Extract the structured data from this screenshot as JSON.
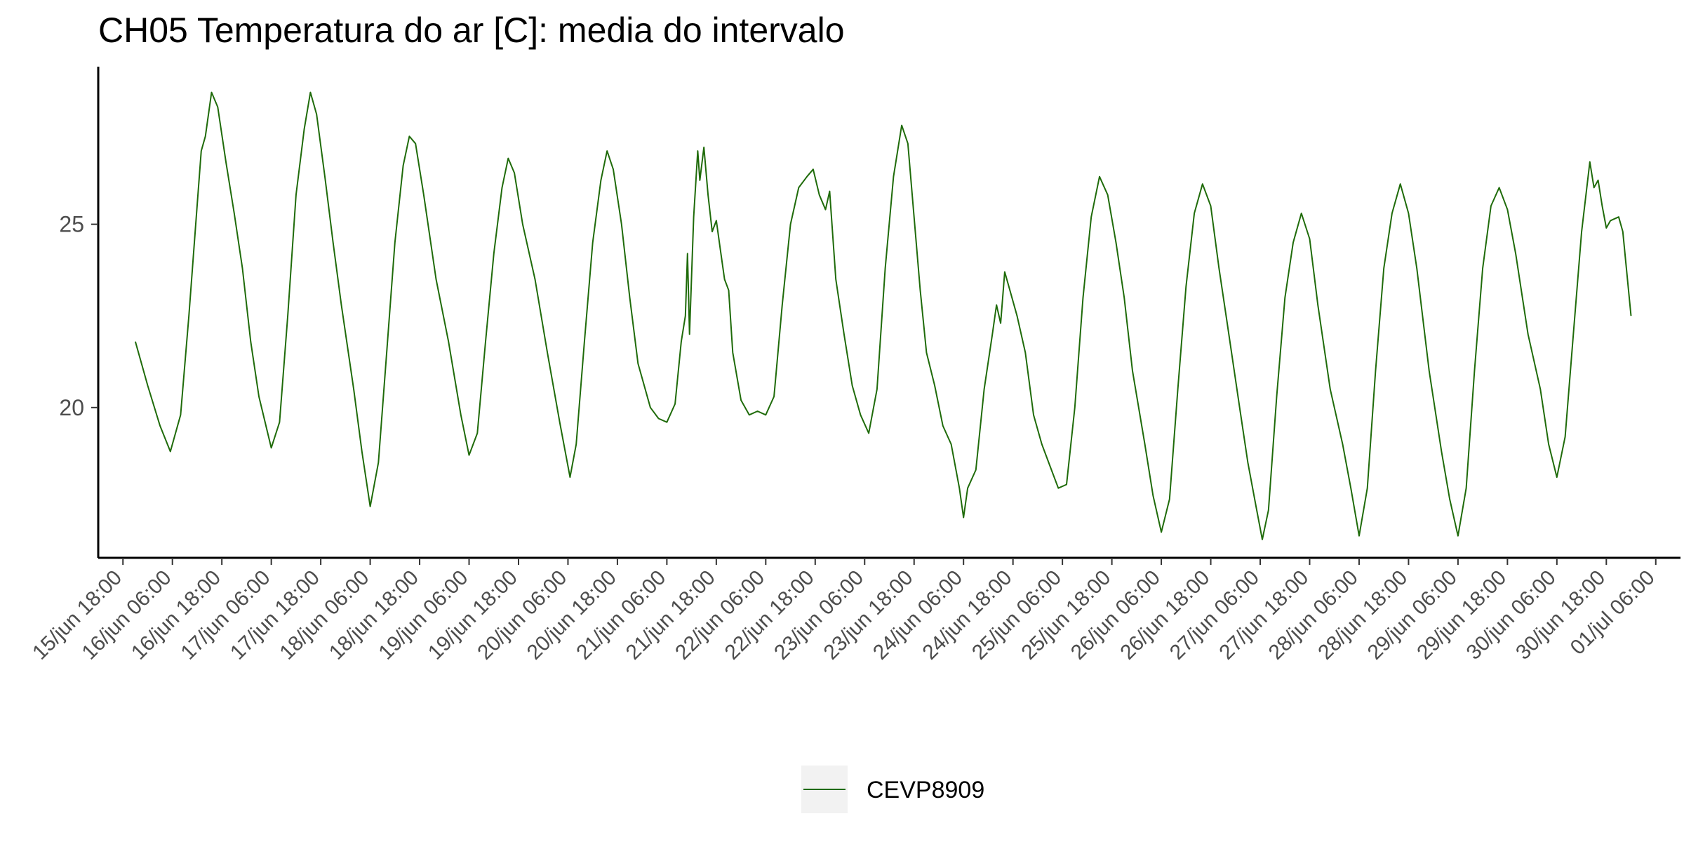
{
  "chart_data": {
    "type": "line",
    "title": "CH05 Temperatura do ar [C]: media do intervalo",
    "xlabel": "",
    "ylabel": "",
    "x_ticks": [
      "15/jun 18:00",
      "16/jun 06:00",
      "16/jun 18:00",
      "17/jun 06:00",
      "17/jun 18:00",
      "18/jun 06:00",
      "18/jun 18:00",
      "19/jun 06:00",
      "19/jun 18:00",
      "20/jun 06:00",
      "20/jun 18:00",
      "21/jun 06:00",
      "21/jun 18:00",
      "22/jun 06:00",
      "22/jun 18:00",
      "23/jun 06:00",
      "23/jun 18:00",
      "24/jun 06:00",
      "24/jun 18:00",
      "25/jun 06:00",
      "25/jun 18:00",
      "26/jun 06:00",
      "26/jun 18:00",
      "27/jun 06:00",
      "27/jun 18:00",
      "28/jun 06:00",
      "28/jun 18:00",
      "29/jun 06:00",
      "29/jun 18:00",
      "30/jun 06:00",
      "30/jun 18:00",
      "01/jul 06:00"
    ],
    "xlim": [
      "15/jun 12:00",
      "01/jul 12:00"
    ],
    "y_ticks": [
      20,
      25
    ],
    "ylim": [
      15.9,
      29.3
    ],
    "grid": false,
    "legend_position": "bottom",
    "series": [
      {
        "name": "CEVP8909",
        "color": "#1f6b0a",
        "points": [
          [
            "15/jun 21:00",
            21.8
          ],
          [
            "16/jun 00:00",
            20.6
          ],
          [
            "16/jun 03:00",
            19.5
          ],
          [
            "16/jun 05:30",
            18.8
          ],
          [
            "16/jun 08:00",
            19.8
          ],
          [
            "16/jun 10:00",
            22.5
          ],
          [
            "16/jun 12:00",
            25.5
          ],
          [
            "16/jun 13:00",
            27.0
          ],
          [
            "16/jun 14:00",
            27.4
          ],
          [
            "16/jun 15:30",
            28.6
          ],
          [
            "16/jun 17:00",
            28.2
          ],
          [
            "16/jun 19:00",
            26.7
          ],
          [
            "16/jun 21:00",
            25.3
          ],
          [
            "16/jun 23:00",
            23.8
          ],
          [
            "17/jun 01:00",
            21.8
          ],
          [
            "17/jun 03:00",
            20.3
          ],
          [
            "17/jun 06:00",
            18.9
          ],
          [
            "17/jun 08:00",
            19.6
          ],
          [
            "17/jun 10:00",
            22.5
          ],
          [
            "17/jun 12:00",
            25.8
          ],
          [
            "17/jun 14:00",
            27.6
          ],
          [
            "17/jun 15:30",
            28.6
          ],
          [
            "17/jun 17:00",
            28.0
          ],
          [
            "17/jun 19:00",
            26.3
          ],
          [
            "17/jun 21:00",
            24.5
          ],
          [
            "17/jun 23:00",
            22.8
          ],
          [
            "18/jun 02:00",
            20.5
          ],
          [
            "18/jun 04:00",
            18.8
          ],
          [
            "18/jun 06:00",
            17.3
          ],
          [
            "18/jun 08:00",
            18.5
          ],
          [
            "18/jun 10:00",
            21.5
          ],
          [
            "18/jun 12:00",
            24.5
          ],
          [
            "18/jun 14:00",
            26.6
          ],
          [
            "18/jun 15:30",
            27.4
          ],
          [
            "18/jun 17:00",
            27.2
          ],
          [
            "18/jun 19:00",
            25.8
          ],
          [
            "18/jun 22:00",
            23.5
          ],
          [
            "19/jun 01:00",
            21.8
          ],
          [
            "19/jun 04:00",
            19.8
          ],
          [
            "19/jun 06:00",
            18.7
          ],
          [
            "19/jun 08:00",
            19.3
          ],
          [
            "19/jun 10:00",
            21.8
          ],
          [
            "19/jun 12:00",
            24.2
          ],
          [
            "19/jun 14:00",
            26.0
          ],
          [
            "19/jun 15:30",
            26.8
          ],
          [
            "19/jun 17:00",
            26.4
          ],
          [
            "19/jun 19:00",
            25.0
          ],
          [
            "19/jun 22:00",
            23.5
          ],
          [
            "20/jun 01:00",
            21.5
          ],
          [
            "20/jun 04:00",
            19.6
          ],
          [
            "20/jun 06:30",
            18.1
          ],
          [
            "20/jun 08:00",
            19.0
          ],
          [
            "20/jun 10:00",
            21.8
          ],
          [
            "20/jun 12:00",
            24.5
          ],
          [
            "20/jun 14:00",
            26.2
          ],
          [
            "20/jun 15:30",
            27.0
          ],
          [
            "20/jun 17:00",
            26.5
          ],
          [
            "20/jun 19:00",
            25.0
          ],
          [
            "20/jun 21:00",
            23.0
          ],
          [
            "20/jun 23:00",
            21.2
          ],
          [
            "21/jun 02:00",
            20.0
          ],
          [
            "21/jun 04:00",
            19.7
          ],
          [
            "21/jun 06:00",
            19.6
          ],
          [
            "21/jun 08:00",
            20.1
          ],
          [
            "21/jun 09:30",
            21.8
          ],
          [
            "21/jun 10:30",
            22.5
          ],
          [
            "21/jun 11:00",
            24.2
          ],
          [
            "21/jun 11:30",
            22.0
          ],
          [
            "21/jun 12:30",
            25.2
          ],
          [
            "21/jun 13:30",
            27.0
          ],
          [
            "21/jun 14:00",
            26.2
          ],
          [
            "21/jun 15:00",
            27.1
          ],
          [
            "21/jun 16:00",
            25.8
          ],
          [
            "21/jun 17:00",
            24.8
          ],
          [
            "21/jun 18:00",
            25.1
          ],
          [
            "21/jun 19:00",
            24.3
          ],
          [
            "21/jun 20:00",
            23.5
          ],
          [
            "21/jun 21:00",
            23.2
          ],
          [
            "21/jun 22:00",
            21.5
          ],
          [
            "22/jun 00:00",
            20.2
          ],
          [
            "22/jun 02:00",
            19.8
          ],
          [
            "22/jun 04:00",
            19.9
          ],
          [
            "22/jun 06:00",
            19.8
          ],
          [
            "22/jun 08:00",
            20.3
          ],
          [
            "22/jun 10:00",
            22.8
          ],
          [
            "22/jun 12:00",
            25.0
          ],
          [
            "22/jun 14:00",
            26.0
          ],
          [
            "22/jun 16:00",
            26.3
          ],
          [
            "22/jun 17:30",
            26.5
          ],
          [
            "22/jun 19:00",
            25.8
          ],
          [
            "22/jun 20:30",
            25.4
          ],
          [
            "22/jun 21:30",
            25.9
          ],
          [
            "22/jun 23:00",
            23.5
          ],
          [
            "23/jun 01:00",
            22.0
          ],
          [
            "23/jun 03:00",
            20.6
          ],
          [
            "23/jun 05:00",
            19.8
          ],
          [
            "23/jun 07:00",
            19.3
          ],
          [
            "23/jun 09:00",
            20.5
          ],
          [
            "23/jun 11:00",
            23.8
          ],
          [
            "23/jun 13:00",
            26.3
          ],
          [
            "23/jun 15:00",
            27.7
          ],
          [
            "23/jun 16:30",
            27.2
          ],
          [
            "23/jun 18:00",
            25.2
          ],
          [
            "23/jun 19:30",
            23.2
          ],
          [
            "23/jun 21:00",
            21.5
          ],
          [
            "23/jun 23:00",
            20.6
          ],
          [
            "24/jun 01:00",
            19.5
          ],
          [
            "24/jun 03:00",
            19.0
          ],
          [
            "24/jun 05:00",
            17.8
          ],
          [
            "24/jun 06:00",
            17.0
          ],
          [
            "24/jun 07:00",
            17.8
          ],
          [
            "24/jun 09:00",
            18.3
          ],
          [
            "24/jun 11:00",
            20.5
          ],
          [
            "24/jun 13:00",
            22.0
          ],
          [
            "24/jun 14:00",
            22.8
          ],
          [
            "24/jun 15:00",
            22.3
          ],
          [
            "24/jun 16:00",
            23.7
          ],
          [
            "24/jun 17:00",
            23.3
          ],
          [
            "24/jun 19:00",
            22.5
          ],
          [
            "24/jun 21:00",
            21.5
          ],
          [
            "24/jun 23:00",
            19.8
          ],
          [
            "25/jun 01:00",
            19.0
          ],
          [
            "25/jun 03:00",
            18.4
          ],
          [
            "25/jun 05:00",
            17.8
          ],
          [
            "25/jun 07:00",
            17.9
          ],
          [
            "25/jun 09:00",
            20.0
          ],
          [
            "25/jun 11:00",
            23.0
          ],
          [
            "25/jun 13:00",
            25.2
          ],
          [
            "25/jun 15:00",
            26.3
          ],
          [
            "25/jun 17:00",
            25.8
          ],
          [
            "25/jun 19:00",
            24.5
          ],
          [
            "25/jun 21:00",
            23.0
          ],
          [
            "25/jun 23:00",
            21.0
          ],
          [
            "26/jun 02:00",
            19.0
          ],
          [
            "26/jun 04:00",
            17.6
          ],
          [
            "26/jun 06:00",
            16.6
          ],
          [
            "26/jun 08:00",
            17.5
          ],
          [
            "26/jun 10:00",
            20.5
          ],
          [
            "26/jun 12:00",
            23.3
          ],
          [
            "26/jun 14:00",
            25.3
          ],
          [
            "26/jun 16:00",
            26.1
          ],
          [
            "26/jun 18:00",
            25.5
          ],
          [
            "26/jun 20:00",
            23.8
          ],
          [
            "26/jun 22:00",
            22.3
          ],
          [
            "27/jun 01:00",
            20.0
          ],
          [
            "27/jun 03:00",
            18.5
          ],
          [
            "27/jun 05:00",
            17.3
          ],
          [
            "27/jun 06:30",
            16.4
          ],
          [
            "27/jun 08:00",
            17.2
          ],
          [
            "27/jun 10:00",
            20.3
          ],
          [
            "27/jun 12:00",
            23.0
          ],
          [
            "27/jun 14:00",
            24.5
          ],
          [
            "27/jun 16:00",
            25.3
          ],
          [
            "27/jun 18:00",
            24.6
          ],
          [
            "27/jun 20:00",
            22.8
          ],
          [
            "27/jun 23:00",
            20.5
          ],
          [
            "28/jun 02:00",
            19.0
          ],
          [
            "28/jun 04:00",
            17.8
          ],
          [
            "28/jun 06:00",
            16.5
          ],
          [
            "28/jun 08:00",
            17.8
          ],
          [
            "28/jun 10:00",
            21.0
          ],
          [
            "28/jun 12:00",
            23.8
          ],
          [
            "28/jun 14:00",
            25.3
          ],
          [
            "28/jun 16:00",
            26.1
          ],
          [
            "28/jun 18:00",
            25.3
          ],
          [
            "28/jun 20:00",
            23.8
          ],
          [
            "28/jun 23:00",
            21.0
          ],
          [
            "29/jun 02:00",
            18.8
          ],
          [
            "29/jun 04:00",
            17.5
          ],
          [
            "29/jun 06:00",
            16.5
          ],
          [
            "29/jun 08:00",
            17.8
          ],
          [
            "29/jun 10:00",
            21.0
          ],
          [
            "29/jun 12:00",
            23.8
          ],
          [
            "29/jun 14:00",
            25.5
          ],
          [
            "29/jun 16:00",
            26.0
          ],
          [
            "29/jun 18:00",
            25.4
          ],
          [
            "29/jun 20:00",
            24.2
          ],
          [
            "29/jun 23:00",
            22.0
          ],
          [
            "30/jun 02:00",
            20.5
          ],
          [
            "30/jun 04:00",
            19.0
          ],
          [
            "30/jun 06:00",
            18.1
          ],
          [
            "30/jun 08:00",
            19.2
          ],
          [
            "30/jun 10:00",
            22.0
          ],
          [
            "30/jun 12:00",
            24.8
          ],
          [
            "30/jun 14:00",
            26.7
          ],
          [
            "30/jun 15:00",
            26.0
          ],
          [
            "30/jun 16:00",
            26.2
          ],
          [
            "30/jun 17:00",
            25.5
          ],
          [
            "30/jun 18:00",
            24.9
          ],
          [
            "30/jun 19:00",
            25.1
          ],
          [
            "30/jun 21:00",
            25.2
          ],
          [
            "30/jun 22:00",
            24.8
          ],
          [
            "01/jul 00:00",
            22.5
          ]
        ]
      }
    ]
  }
}
